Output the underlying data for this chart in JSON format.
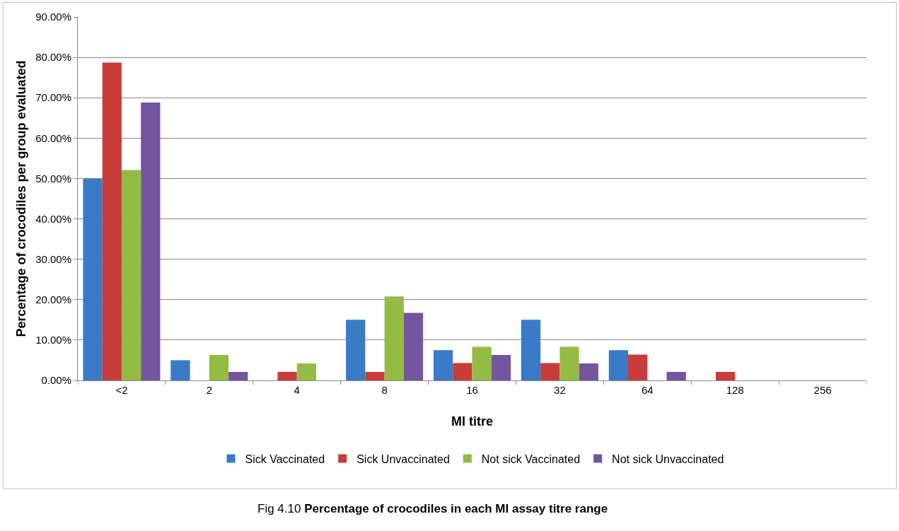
{
  "chart_data": {
    "type": "bar",
    "title": "Fig 4.10 Percentage of crocodiles in each MI assay titre range",
    "xlabel": "MI titre",
    "ylabel": "Percentage of crocodiles per group evaluated",
    "categories": [
      "<2",
      "2",
      "4",
      "8",
      "16",
      "32",
      "64",
      "128",
      "256"
    ],
    "series": [
      {
        "name": "Sick Vaccinated",
        "color": "#3a7bc8",
        "values": [
          50,
          5,
          0,
          15,
          7.5,
          15,
          7.5,
          0,
          0
        ]
      },
      {
        "name": "Sick Unvaccinated",
        "color": "#c83c3a",
        "values": [
          78.7,
          0,
          2.1,
          2.1,
          4.3,
          4.3,
          6.4,
          2.1,
          0
        ]
      },
      {
        "name": "Not sick Vaccinated",
        "color": "#92bc44",
        "values": [
          52.1,
          6.3,
          4.2,
          20.8,
          8.3,
          8.3,
          0,
          0,
          0
        ]
      },
      {
        "name": "Not sick Unvaccinated",
        "color": "#7455a0",
        "values": [
          68.8,
          2.1,
          0,
          16.7,
          6.3,
          4.2,
          2.1,
          0,
          0
        ]
      }
    ],
    "ylim": [
      0,
      90
    ],
    "yticks": [
      {
        "value": 0,
        "label": "0.00%"
      },
      {
        "value": 10,
        "label": "10.00%"
      },
      {
        "value": 20,
        "label": "20.00%"
      },
      {
        "value": 30,
        "label": "30.00%"
      },
      {
        "value": 40,
        "label": "40.00%"
      },
      {
        "value": 50,
        "label": "50.00%"
      },
      {
        "value": 60,
        "label": "60.00%"
      },
      {
        "value": 70,
        "label": "70.00%"
      },
      {
        "value": 80,
        "label": "80.00%"
      },
      {
        "value": 90,
        "label": "90.00%"
      }
    ],
    "grid": "y",
    "legend": "bottom"
  }
}
